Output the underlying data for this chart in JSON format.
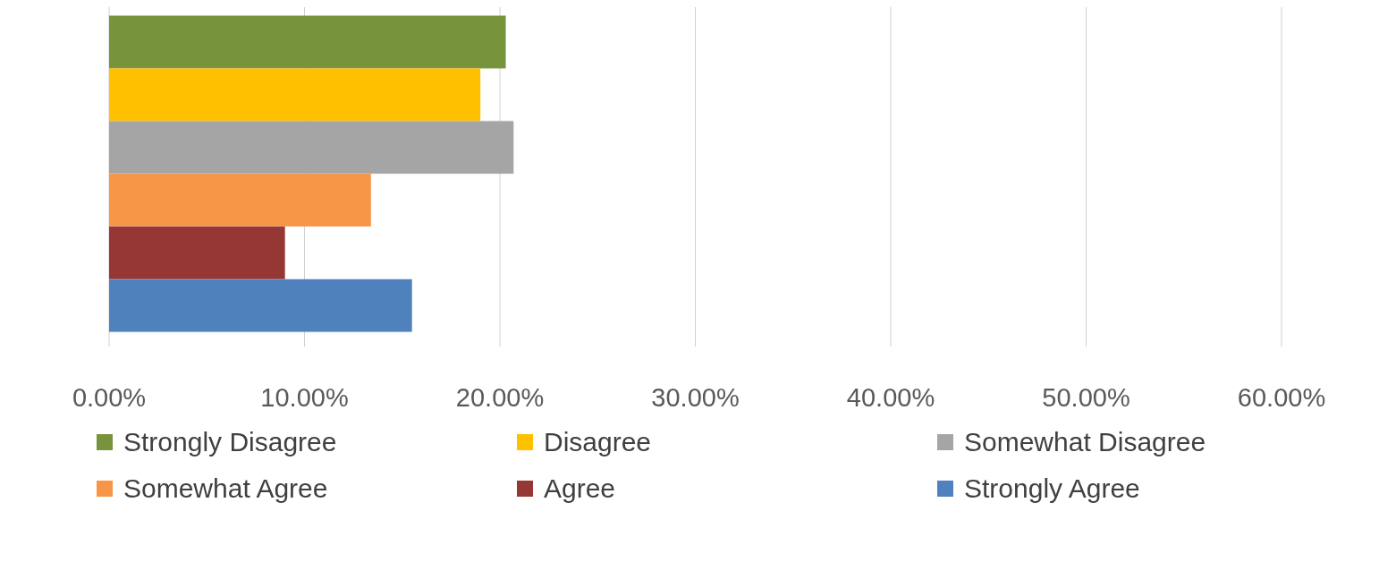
{
  "chart_data": {
    "type": "bar",
    "orientation": "horizontal",
    "categories": [
      null
    ],
    "series": [
      {
        "name": "Strongly Disagree",
        "color": "#77933c",
        "values": [
          20.3
        ]
      },
      {
        "name": "Disagree",
        "color": "#ffc000",
        "values": [
          19.0
        ]
      },
      {
        "name": "Somewhat Disagree",
        "color": "#a5a5a5",
        "values": [
          20.7
        ]
      },
      {
        "name": "Somewhat Agree",
        "color": "#f79646",
        "values": [
          13.4
        ]
      },
      {
        "name": "Agree",
        "color": "#953735",
        "values": [
          9.0
        ]
      },
      {
        "name": "Strongly Agree",
        "color": "#4f81bd",
        "values": [
          15.5
        ]
      }
    ],
    "xlim": [
      0,
      60
    ],
    "xticks": [
      {
        "value": 0,
        "label": "0.00%"
      },
      {
        "value": 10,
        "label": "10.00%"
      },
      {
        "value": 20,
        "label": "20.00%"
      },
      {
        "value": 30,
        "label": "30.00%"
      },
      {
        "value": 40,
        "label": "40.00%"
      },
      {
        "value": 50,
        "label": "50.00%"
      },
      {
        "value": 60,
        "label": "60.00%"
      }
    ],
    "grid": "x",
    "legend": "bottom"
  }
}
